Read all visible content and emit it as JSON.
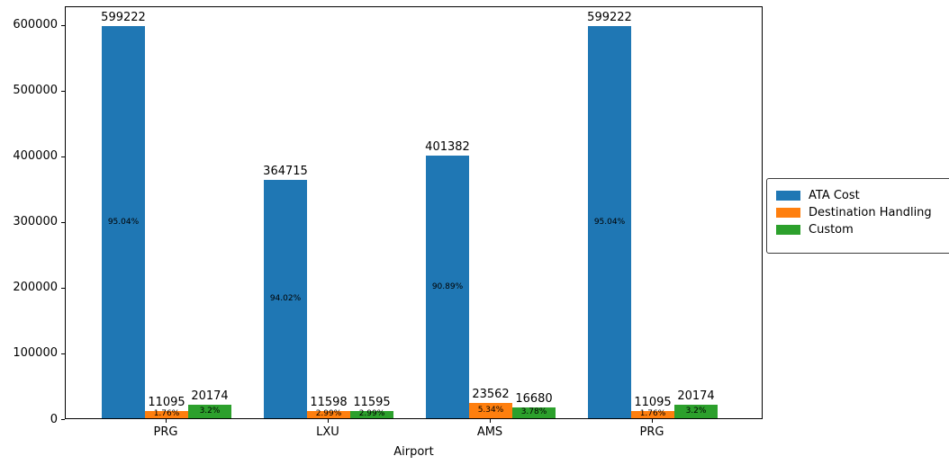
{
  "chart_data": {
    "type": "bar",
    "title": "",
    "xlabel": "Airport",
    "ylabel": "",
    "categories": [
      "PRG",
      "LXU",
      "AMS",
      "PRG"
    ],
    "series": [
      {
        "name": "ATA Cost",
        "color": "#1f77b4",
        "values": [
          599222,
          364715,
          401382,
          599222
        ],
        "value_labels": [
          "599222",
          "364715",
          "401382",
          "599222"
        ],
        "percent_labels": [
          "95.04%",
          "94.02%",
          "90.89%",
          "95.04%"
        ]
      },
      {
        "name": "Destination Handling",
        "color": "#ff7f0e",
        "values": [
          11095,
          11598,
          23562,
          11095
        ],
        "value_labels": [
          "11095",
          "11598",
          "23562",
          "11095"
        ],
        "percent_labels": [
          "1.76%",
          "2.99%",
          "5.34%",
          "1.76%"
        ]
      },
      {
        "name": "Custom",
        "color": "#2ca02c",
        "values": [
          20174,
          11595,
          16680,
          20174
        ],
        "value_labels": [
          "20174",
          "11595",
          "16680",
          "20174"
        ],
        "percent_labels": [
          "3.2%",
          "2.99%",
          "3.78%",
          "3.2%"
        ]
      }
    ],
    "y_ticks": [
      0,
      100000,
      200000,
      300000,
      400000,
      500000,
      600000
    ],
    "ylim": [
      0,
      628600
    ],
    "grid": false,
    "legend_position": "center right"
  }
}
